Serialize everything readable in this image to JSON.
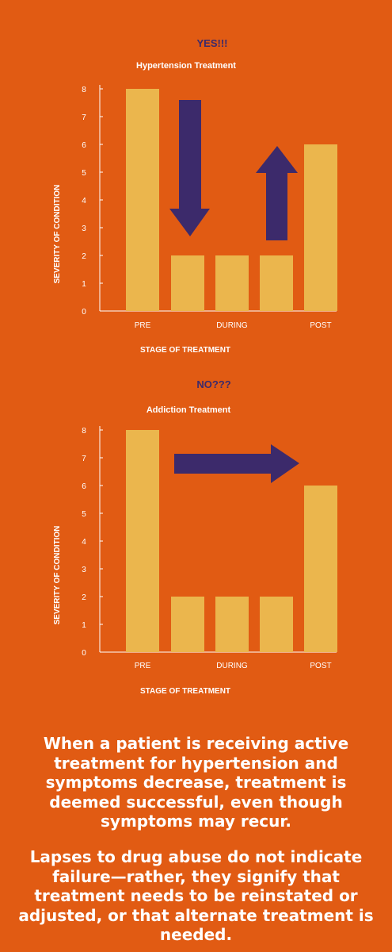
{
  "colors": {
    "background": "#E15B13",
    "bar": "#EBB64D",
    "arrow": "#3C2A6B",
    "axis": "#ffffff",
    "text": "#ffffff"
  },
  "chart_data": [
    {
      "type": "bar",
      "verdict": "YES!!!",
      "title": "Hypertension Treatment",
      "xlabel": "STAGE OF TREATMENT",
      "ylabel": "SEVERITY OF CONDITION",
      "ylim": [
        0,
        8
      ],
      "yticks": [
        0,
        1,
        2,
        3,
        4,
        5,
        6,
        7,
        8
      ],
      "categories": [
        "PRE",
        "",
        "DURING",
        "",
        "POST"
      ],
      "values": [
        8,
        2,
        2,
        2,
        6
      ],
      "grid": false,
      "annotations": [
        {
          "type": "arrow",
          "direction": "down"
        },
        {
          "type": "arrow",
          "direction": "up"
        }
      ]
    },
    {
      "type": "bar",
      "verdict": "NO???",
      "title": "Addiction Treatment",
      "xlabel": "STAGE OF TREATMENT",
      "ylabel": "SEVERITY OF CONDITION",
      "ylim": [
        0,
        8
      ],
      "yticks": [
        0,
        1,
        2,
        3,
        4,
        5,
        6,
        7,
        8
      ],
      "categories": [
        "PRE",
        "",
        "DURING",
        "",
        "POST"
      ],
      "values": [
        8,
        2,
        2,
        2,
        6
      ],
      "grid": false,
      "annotations": [
        {
          "type": "arrow",
          "direction": "right"
        }
      ]
    }
  ],
  "text": {
    "paragraph1": "When a patient is receiving active treatment for hypertension and symptoms decrease, treatment is deemed successful, even though symptoms may recur.",
    "paragraph2": "Lapses to drug abuse do not indicate failure—rather, they signify that treatment needs to be reinstated or adjusted, or that alternate treatment is needed."
  }
}
